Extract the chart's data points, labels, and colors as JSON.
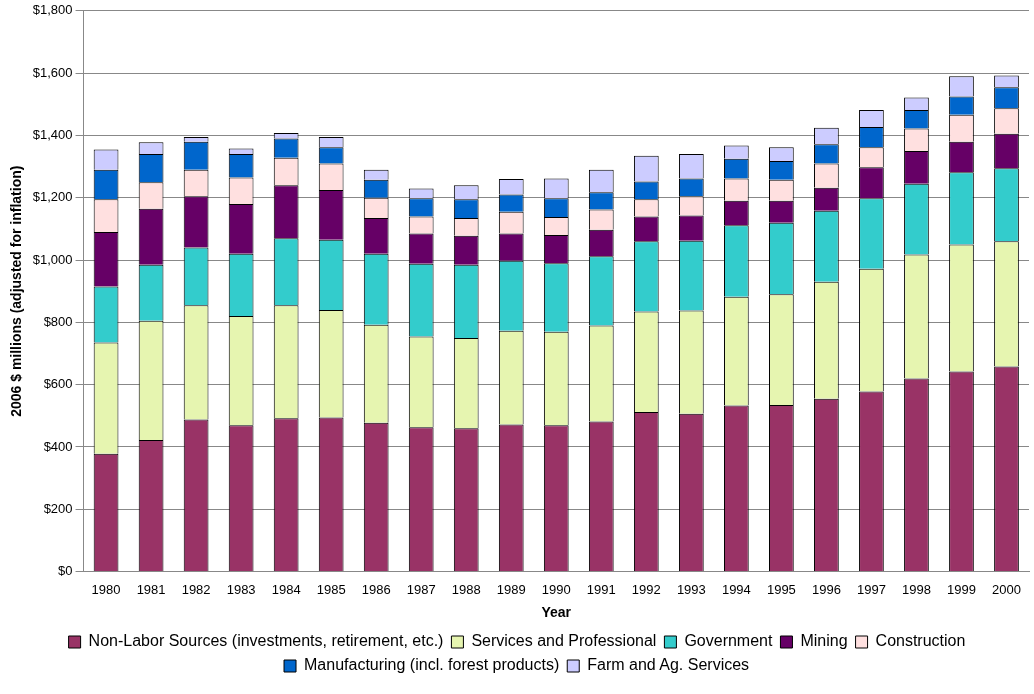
{
  "chart_data": {
    "type": "bar",
    "stacked": true,
    "xlabel": "Year",
    "ylabel": "2006 $ millions (adjusted for inflation)",
    "categories": [
      "1980",
      "1981",
      "1982",
      "1983",
      "1984",
      "1985",
      "1986",
      "1987",
      "1988",
      "1989",
      "1990",
      "1991",
      "1992",
      "1993",
      "1994",
      "1995",
      "1996",
      "1997",
      "1998",
      "1999",
      "2000"
    ],
    "series": [
      {
        "name": "Non-Labor Sources (investments, retirement, etc.)",
        "color": "#993366",
        "values": [
          378,
          422,
          488,
          470,
          492,
          495,
          478,
          463,
          460,
          472,
          470,
          482,
          512,
          507,
          533,
          535,
          555,
          578,
          620,
          642,
          658
        ]
      },
      {
        "name": "Services and Professional",
        "color": "#e6f5b0",
        "values": [
          357,
          383,
          367,
          350,
          363,
          345,
          314,
          292,
          290,
          301,
          300,
          308,
          323,
          331,
          349,
          355,
          375,
          394,
          398,
          408,
          402
        ]
      },
      {
        "name": "Government",
        "color": "#33cccc",
        "values": [
          180,
          180,
          185,
          200,
          215,
          225,
          228,
          233,
          235,
          225,
          220,
          222,
          225,
          224,
          230,
          230,
          228,
          226,
          227,
          232,
          235
        ]
      },
      {
        "name": "Mining",
        "color": "#660066",
        "values": [
          175,
          180,
          165,
          160,
          170,
          160,
          115,
          97,
          93,
          87,
          90,
          85,
          80,
          81,
          78,
          70,
          74,
          100,
          105,
          98,
          110
        ]
      },
      {
        "name": "Construction",
        "color": "#ffe0e0",
        "values": [
          105,
          85,
          85,
          85,
          88,
          85,
          65,
          55,
          57,
          70,
          58,
          65,
          55,
          62,
          72,
          68,
          78,
          64,
          72,
          86,
          82
        ]
      },
      {
        "name": "Manufacturing (incl. forest products)",
        "color": "#0066cc",
        "values": [
          95,
          90,
          90,
          75,
          62,
          52,
          58,
          58,
          60,
          55,
          60,
          56,
          57,
          57,
          63,
          60,
          62,
          65,
          60,
          59,
          68
        ]
      },
      {
        "name": "Farm and Ag. Services",
        "color": "#ccccff",
        "values": [
          65,
          38,
          15,
          18,
          18,
          33,
          32,
          32,
          45,
          50,
          64,
          72,
          83,
          78,
          43,
          44,
          53,
          55,
          40,
          65,
          37
        ]
      }
    ],
    "ylim": [
      0,
      1800
    ],
    "yticks": [
      {
        "value": 0,
        "label": "$0"
      },
      {
        "value": 200,
        "label": "$200"
      },
      {
        "value": 400,
        "label": "$400"
      },
      {
        "value": 600,
        "label": "$600"
      },
      {
        "value": 800,
        "label": "$800"
      },
      {
        "value": 1000,
        "label": "$1,000"
      },
      {
        "value": 1200,
        "label": "$1,200"
      },
      {
        "value": 1400,
        "label": "$1,400"
      },
      {
        "value": 1600,
        "label": "$1,600"
      },
      {
        "value": 1800,
        "label": "$1,800"
      }
    ],
    "grid": "y",
    "legend": "bottom"
  }
}
